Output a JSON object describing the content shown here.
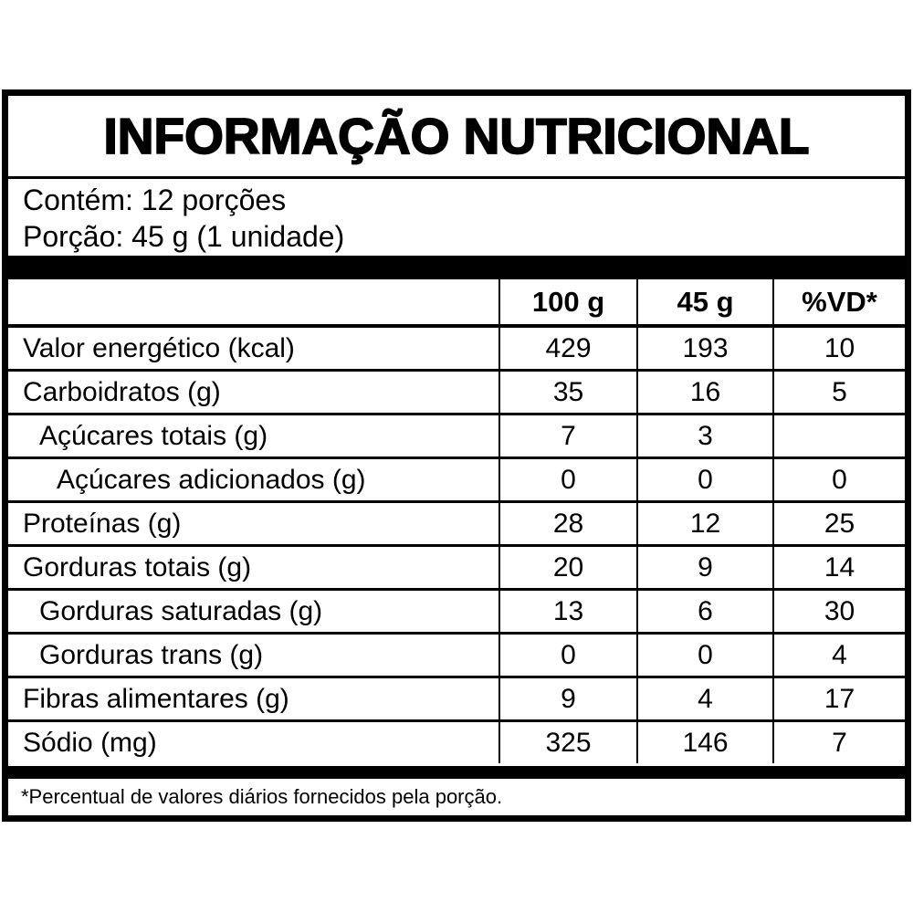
{
  "label": {
    "title": "INFORMAÇÃO NUTRICIONAL",
    "serving": {
      "line1": "Contém: 12 porções",
      "line2": "Porção: 45 g (1 unidade)"
    },
    "table": {
      "columns": [
        "100 g",
        "45 g",
        "%VD*"
      ],
      "rows": [
        {
          "name": "Valor energético (kcal)",
          "indent": 0,
          "per100": "429",
          "per45": "193",
          "vd": "10"
        },
        {
          "name": "Carboidratos (g)",
          "indent": 0,
          "per100": "35",
          "per45": "16",
          "vd": "5"
        },
        {
          "name": "Açúcares totais (g)",
          "indent": 1,
          "per100": "7",
          "per45": "3",
          "vd": ""
        },
        {
          "name": "Açúcares adicionados (g)",
          "indent": 2,
          "per100": "0",
          "per45": "0",
          "vd": "0"
        },
        {
          "name": "Proteínas (g)",
          "indent": 0,
          "per100": "28",
          "per45": "12",
          "vd": "25"
        },
        {
          "name": "Gorduras totais (g)",
          "indent": 0,
          "per100": "20",
          "per45": "9",
          "vd": "14"
        },
        {
          "name": "Gorduras saturadas (g)",
          "indent": 1,
          "per100": "13",
          "per45": "6",
          "vd": "30"
        },
        {
          "name": "Gorduras trans (g)",
          "indent": 1,
          "per100": "0",
          "per45": "0",
          "vd": "4"
        },
        {
          "name": "Fibras alimentares (g)",
          "indent": 0,
          "per100": "9",
          "per45": "4",
          "vd": "17"
        },
        {
          "name": "Sódio (mg)",
          "indent": 0,
          "per100": "325",
          "per45": "146",
          "vd": "7"
        }
      ]
    },
    "footnote": "*Percentual de valores diários fornecidos pela porção.",
    "colors": {
      "ink": "#000000",
      "background": "#ffffff"
    }
  }
}
